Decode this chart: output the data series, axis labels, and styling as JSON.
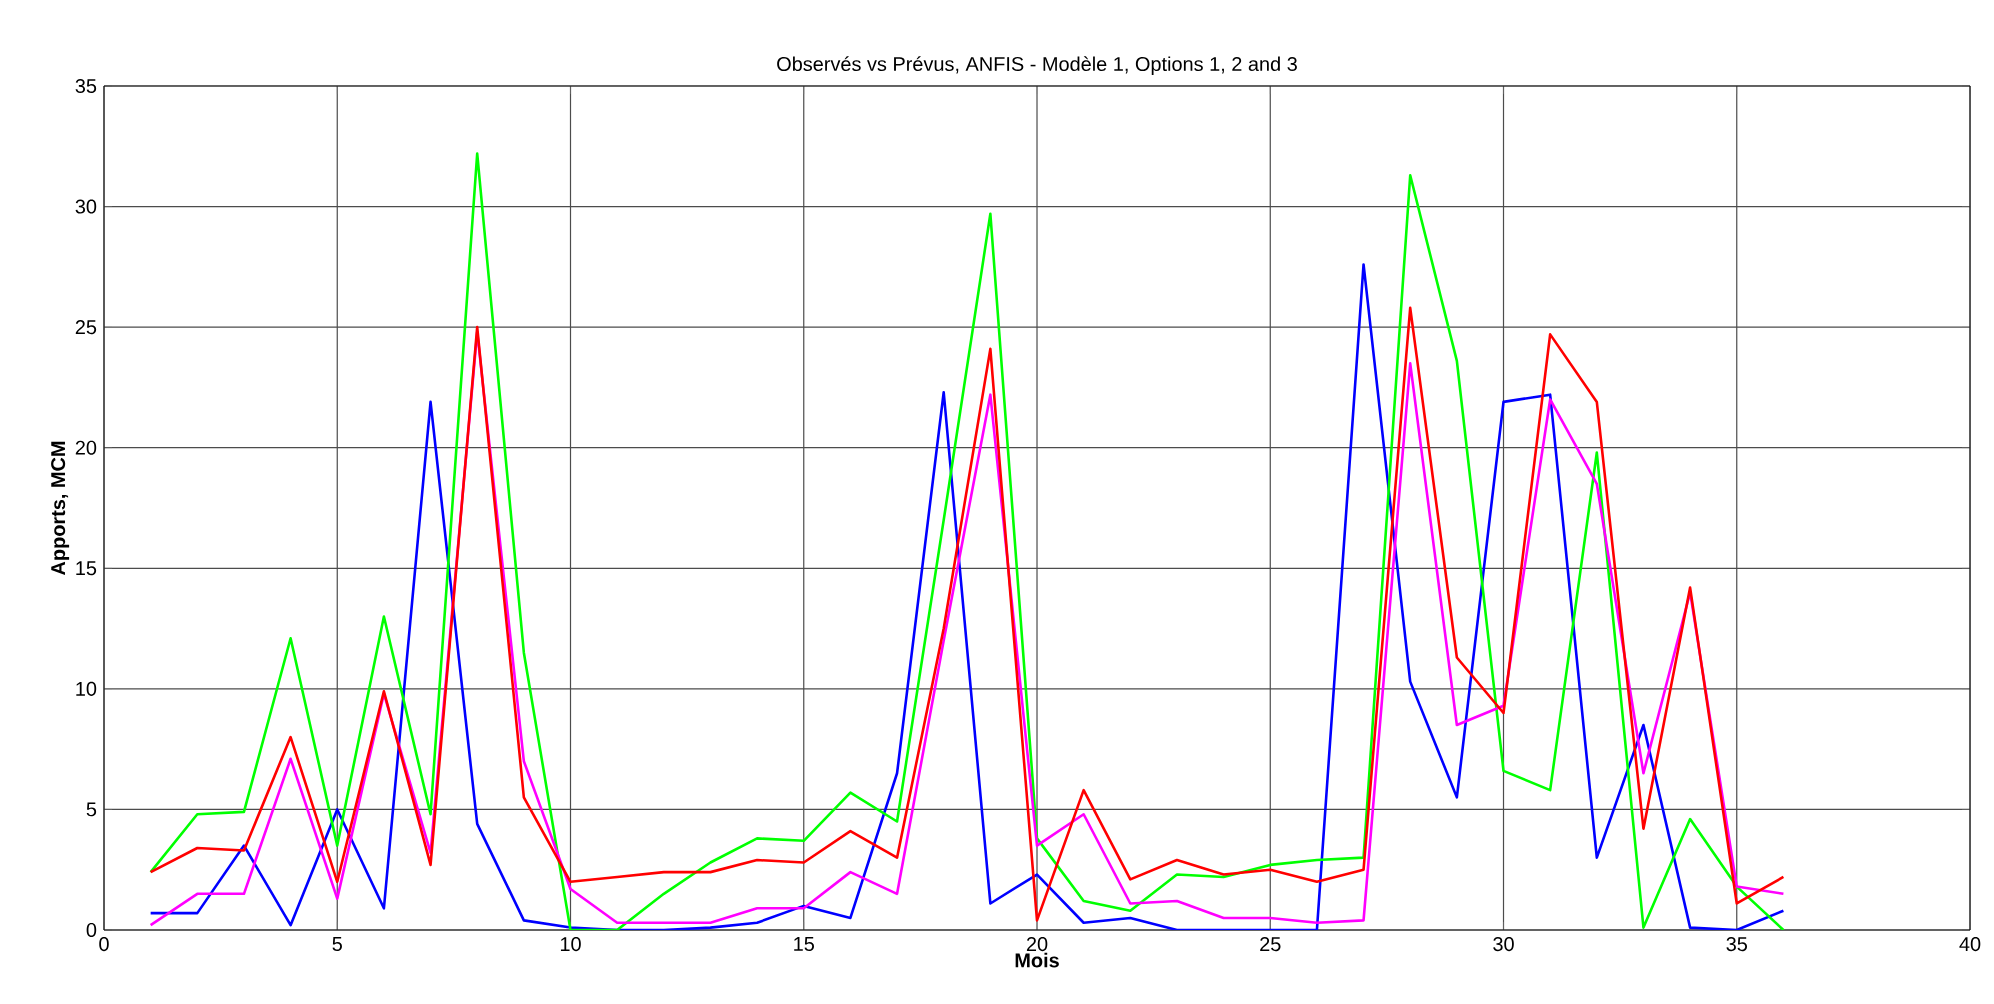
{
  "chart_data": {
    "type": "line",
    "title": "Observés vs Prévus, ANFIS - Modèle 1, Options 1, 2 and 3",
    "xlabel": "Mois",
    "ylabel": "Apports, MCM",
    "x": [
      1,
      2,
      3,
      4,
      5,
      6,
      7,
      8,
      9,
      10,
      11,
      12,
      13,
      14,
      15,
      16,
      17,
      18,
      19,
      20,
      21,
      22,
      23,
      24,
      25,
      26,
      27,
      28,
      29,
      30,
      31,
      32,
      33,
      34,
      35,
      36
    ],
    "series": [
      {
        "color": "#0000ff",
        "values": [
          0.7,
          0.7,
          3.5,
          0.2,
          5.0,
          0.9,
          21.9,
          4.4,
          0.4,
          0.1,
          0,
          0,
          0.1,
          0.3,
          1.0,
          0.5,
          6.5,
          22.3,
          1.1,
          2.3,
          0.3,
          0.5,
          0,
          0,
          0,
          0,
          27.6,
          10.3,
          5.5,
          21.9,
          22.2,
          3.0,
          8.5,
          0.1,
          0,
          0.8
        ]
      },
      {
        "color": "#00ff00",
        "values": [
          2.4,
          4.8,
          4.9,
          12.1,
          3.5,
          13.0,
          4.8,
          32.2,
          11.5,
          0,
          0,
          1.5,
          2.8,
          3.8,
          3.7,
          5.7,
          4.5,
          17,
          29.7,
          3.8,
          1.2,
          0.8,
          2.3,
          2.2,
          2.7,
          2.9,
          3.0,
          31.3,
          23.6,
          6.6,
          5.8,
          19.8,
          0.1,
          4.6,
          1.8,
          0
        ]
      },
      {
        "color": "#ff00ff",
        "values": [
          0.2,
          1.5,
          1.5,
          7.1,
          1.3,
          9.8,
          3.2,
          24.8,
          7.0,
          1.7,
          0.3,
          0.3,
          0.3,
          0.9,
          0.9,
          2.4,
          1.5,
          12,
          22.2,
          3.5,
          4.8,
          1.1,
          1.2,
          0.5,
          0.5,
          0.3,
          0.4,
          23.5,
          8.5,
          9.3,
          22,
          18.5,
          6.5,
          14,
          1.8,
          1.5
        ]
      },
      {
        "color": "#ff0000",
        "values": [
          2.4,
          3.4,
          3.3,
          8.0,
          2.0,
          9.9,
          2.7,
          25.0,
          5.5,
          2.0,
          2.2,
          2.4,
          2.4,
          2.9,
          2.8,
          4.1,
          3.0,
          12.5,
          24.1,
          0.4,
          5.8,
          2.1,
          2.9,
          2.3,
          2.5,
          2.0,
          2.5,
          25.8,
          11.3,
          9.0,
          24.7,
          21.9,
          4.2,
          14.2,
          1.1,
          2.2
        ]
      }
    ],
    "xlim": [
      0,
      40
    ],
    "ylim": [
      0,
      35
    ],
    "xticks": [
      0,
      5,
      10,
      15,
      20,
      25,
      30,
      35,
      40
    ],
    "yticks": [
      0,
      5,
      10,
      15,
      20,
      25,
      30,
      35
    ],
    "grid": true,
    "marker": "none",
    "line_style": "solid"
  }
}
